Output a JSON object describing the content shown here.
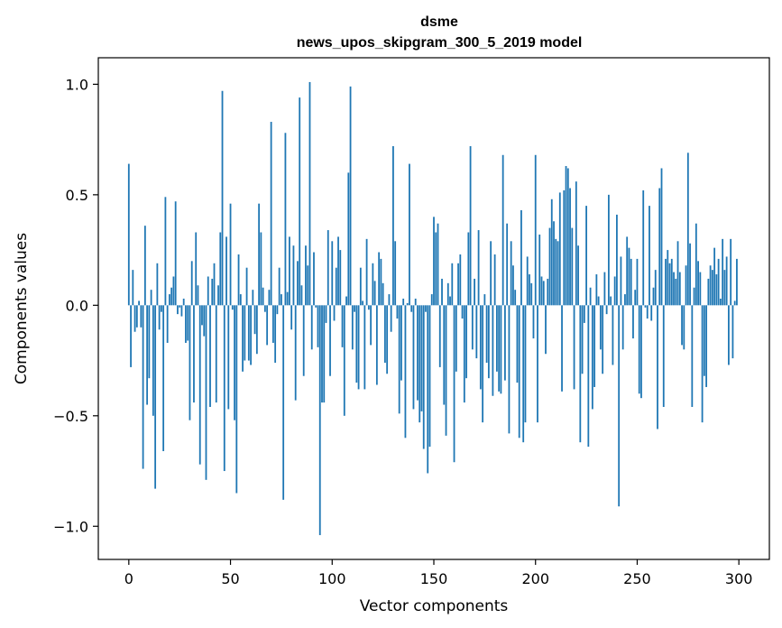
{
  "chart_data": {
    "type": "bar",
    "title": [
      "dsme",
      "news_upos_skipgram_300_5_2019 model"
    ],
    "xlabel": "Vector components",
    "ylabel": "Components values",
    "xlim": [
      -15,
      315
    ],
    "ylim": [
      -1.15,
      1.12
    ],
    "xticks": [
      0,
      50,
      100,
      150,
      200,
      250,
      300
    ],
    "xtick_labels": [
      "0",
      "50",
      "100",
      "150",
      "200",
      "250",
      "300"
    ],
    "yticks": [
      -1.0,
      -0.5,
      0.0,
      0.5,
      1.0
    ],
    "ytick_labels": [
      "−1.0",
      "−0.5",
      "0.0",
      "0.5",
      "1.0"
    ],
    "bar_color": "#1f77b4",
    "grid": false,
    "legend": "none",
    "series": [
      {
        "x_start": 0,
        "values": [
          0.64,
          -0.28,
          0.16,
          -0.12,
          -0.1,
          0.02,
          -0.1,
          -0.74,
          0.36,
          -0.45,
          -0.33,
          0.07,
          -0.5,
          -0.83,
          0.19,
          -0.11,
          -0.03,
          -0.66,
          0.49,
          -0.17,
          0.05,
          0.08,
          0.13,
          0.47,
          -0.04,
          -0.01,
          -0.05,
          0.03,
          -0.17,
          -0.16,
          -0.52,
          0.2,
          -0.44,
          0.33,
          0.09,
          -0.72,
          -0.09,
          -0.14,
          -0.79,
          0.13,
          -0.46,
          0.12,
          0.19,
          -0.44,
          0.09,
          0.33,
          0.97,
          -0.75,
          0.31,
          -0.47,
          0.46,
          -0.02,
          -0.52,
          -0.85,
          0.23,
          0.05,
          -0.3,
          -0.25,
          0.17,
          -0.25,
          -0.27,
          0.07,
          -0.13,
          -0.22,
          0.46,
          0.33,
          0.08,
          -0.03,
          -0.18,
          0.07,
          0.83,
          -0.17,
          -0.26,
          -0.04,
          0.17,
          0.05,
          -0.88,
          0.78,
          0.06,
          0.31,
          -0.11,
          0.27,
          -0.43,
          0.2,
          0.94,
          0.09,
          -0.32,
          0.27,
          0.18,
          1.01,
          -0.2,
          0.24,
          -0.01,
          -0.19,
          -1.04,
          -0.44,
          -0.44,
          -0.08,
          0.34,
          -0.32,
          0.29,
          -0.07,
          0.17,
          0.31,
          0.25,
          -0.19,
          -0.5,
          0.04,
          0.6,
          0.99,
          -0.2,
          -0.03,
          -0.35,
          -0.38,
          0.17,
          0.02,
          -0.38,
          0.3,
          -0.02,
          -0.18,
          0.19,
          0.11,
          -0.36,
          0.24,
          0.21,
          0.1,
          -0.26,
          -0.31,
          0.05,
          -0.12,
          0.72,
          0.29,
          -0.06,
          -0.49,
          -0.34,
          0.03,
          -0.6,
          0.01,
          0.64,
          -0.03,
          -0.47,
          0.03,
          -0.43,
          -0.53,
          -0.48,
          -0.65,
          -0.03,
          -0.76,
          -0.64,
          0.05,
          0.4,
          0.33,
          0.37,
          -0.28,
          0.12,
          -0.45,
          -0.59,
          0.1,
          0.04,
          0.19,
          -0.71,
          -0.3,
          0.19,
          0.23,
          -0.06,
          -0.44,
          -0.33,
          0.33,
          0.72,
          -0.2,
          0.12,
          -0.24,
          0.34,
          -0.38,
          -0.53,
          0.05,
          -0.26,
          -0.33,
          0.29,
          -0.41,
          0.23,
          -0.3,
          -0.39,
          -0.4,
          0.68,
          -0.34,
          0.37,
          -0.58,
          0.29,
          0.18,
          0.07,
          -0.35,
          -0.6,
          0.43,
          -0.62,
          -0.53,
          0.22,
          0.14,
          0.1,
          -0.15,
          0.68,
          -0.53,
          0.32,
          0.13,
          0.11,
          -0.22,
          0.12,
          0.35,
          0.48,
          0.38,
          0.3,
          0.29,
          0.51,
          -0.39,
          0.52,
          0.63,
          0.62,
          0.53,
          0.35,
          -0.38,
          0.56,
          0.27,
          -0.62,
          -0.31,
          -0.08,
          0.45,
          -0.64,
          0.08,
          -0.47,
          -0.37,
          0.14,
          0.04,
          -0.2,
          -0.31,
          0.15,
          -0.04,
          0.5,
          0.04,
          -0.27,
          0.13,
          0.41,
          -0.91,
          0.22,
          -0.2,
          0.05,
          0.31,
          0.26,
          0.21,
          -0.15,
          0.07,
          0.21,
          -0.4,
          -0.42,
          0.52,
          -0.01,
          -0.06,
          0.45,
          -0.07,
          0.08,
          0.16,
          -0.56,
          0.53,
          0.62,
          -0.46,
          0.21,
          0.25,
          0.19,
          0.21,
          0.15,
          0.12,
          0.29,
          0.15,
          -0.18,
          -0.2,
          0.18,
          0.69,
          0.28,
          -0.46,
          0.08,
          0.37,
          0.2,
          0.15,
          -0.53,
          -0.32,
          -0.37,
          0.12,
          0.18,
          0.16,
          0.26,
          0.14,
          0.21,
          0.03,
          0.3,
          0.16,
          0.22,
          -0.27,
          0.3,
          -0.24,
          0.02,
          0.21
        ]
      }
    ]
  }
}
